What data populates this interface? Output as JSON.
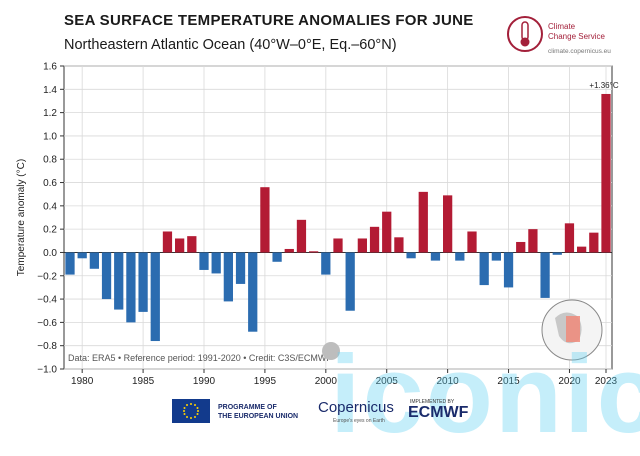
{
  "header": {
    "title": "SEA SURFACE TEMPERATURE ANOMALIES FOR JUNE",
    "subtitle": "Northeastern Atlantic Ocean (40°W–0°E, Eq.–60°N)"
  },
  "logo": {
    "name_line1": "Climate",
    "name_line2": "Change Service",
    "url": "climate.copernicus.eu"
  },
  "chart_data": {
    "type": "bar",
    "ylabel": "Temperature anomaly (°C)",
    "ylim": [
      -1.0,
      1.6
    ],
    "yticks": [
      -1.0,
      -0.8,
      -0.6,
      -0.4,
      -0.2,
      0.0,
      0.2,
      0.4,
      0.6,
      0.8,
      1.0,
      1.2,
      1.4,
      1.6
    ],
    "ytick_labels": [
      "−1.0",
      "−0.8",
      "−0.6",
      "−0.4",
      "−0.2",
      "0.0",
      "0.2",
      "0.4",
      "0.6",
      "0.8",
      "1.0",
      "1.2",
      "1.4",
      "1.6"
    ],
    "xticks": [
      1980,
      1985,
      1990,
      1995,
      2000,
      2005,
      2010,
      2015,
      2020,
      2023
    ],
    "x": [
      1979,
      1980,
      1981,
      1982,
      1983,
      1984,
      1985,
      1986,
      1987,
      1988,
      1989,
      1990,
      1991,
      1992,
      1993,
      1994,
      1995,
      1996,
      1997,
      1998,
      1999,
      2000,
      2001,
      2002,
      2003,
      2004,
      2005,
      2006,
      2007,
      2008,
      2009,
      2010,
      2011,
      2012,
      2013,
      2014,
      2015,
      2016,
      2017,
      2018,
      2019,
      2020,
      2021,
      2022,
      2023
    ],
    "values": [
      -0.19,
      -0.05,
      -0.14,
      -0.4,
      -0.49,
      -0.6,
      -0.51,
      -0.76,
      0.18,
      0.12,
      0.14,
      -0.15,
      -0.18,
      -0.42,
      -0.27,
      -0.68,
      0.56,
      -0.08,
      0.03,
      0.28,
      0.01,
      -0.19,
      0.12,
      -0.5,
      0.12,
      0.22,
      0.35,
      0.13,
      -0.05,
      0.52,
      -0.07,
      0.49,
      -0.07,
      0.18,
      -0.28,
      -0.07,
      -0.3,
      0.09,
      0.2,
      -0.39,
      -0.02,
      0.25,
      0.05,
      0.17,
      1.36
    ],
    "positive_color": "#b31b34",
    "negative_color": "#2b6cb0",
    "annotation": "+1.36°C",
    "credit": "Data: ERA5 • Reference period: 1991-2020 • Credit: C3S/ECMWF",
    "grid": true
  },
  "footer": {
    "eu_line1": "PROGRAMME OF",
    "eu_line2": "THE EUROPEAN UNION",
    "copernicus": "Copernicus",
    "copernicus_sub": "Europe's eyes on Earth",
    "implemented_by": "IMPLEMENTED BY",
    "ecmwf": "ECMWF"
  },
  "watermark": "iconic"
}
